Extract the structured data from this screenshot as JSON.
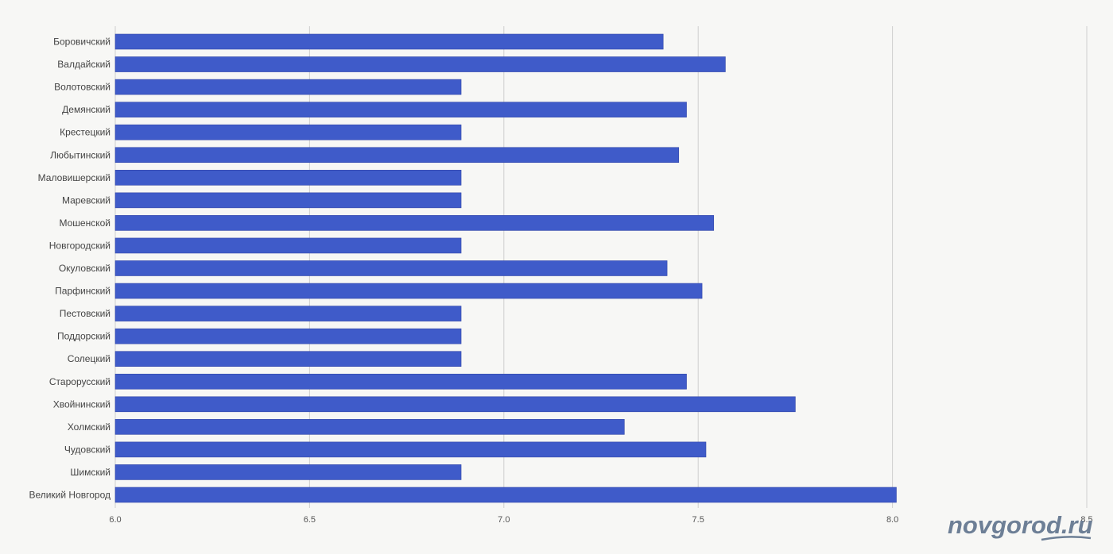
{
  "chart_data": {
    "type": "bar",
    "orientation": "horizontal",
    "title": "",
    "xlabel": "",
    "ylabel": "",
    "xlim": [
      6.0,
      8.5
    ],
    "x_ticks": [
      "6.0",
      "6.5",
      "7.0",
      "7.5",
      "8.0",
      "8.5"
    ],
    "grid": true,
    "bar_color": "#3f5bc9",
    "categories": [
      "Боровичский",
      "Валдайский",
      "Волотовский",
      "Демянский",
      "Крестецкий",
      "Любытинский",
      "Маловишерский",
      "Маревский",
      "Мошенской",
      "Новгородский",
      "Окуловский",
      "Парфинский",
      "Пестовский",
      "Поддорский",
      "Солецкий",
      "Старорусский",
      "Хвойнинский",
      "Холмский",
      "Чудовский",
      "Шимский",
      "Великий Новгород"
    ],
    "values": [
      7.41,
      7.57,
      6.89,
      7.47,
      6.89,
      7.45,
      6.89,
      6.89,
      7.54,
      6.89,
      7.42,
      7.51,
      6.89,
      6.89,
      6.89,
      7.47,
      7.75,
      7.31,
      7.52,
      6.89,
      8.01
    ]
  },
  "watermark": {
    "text": "novgorod.ru",
    "color": "#6d7f96"
  }
}
